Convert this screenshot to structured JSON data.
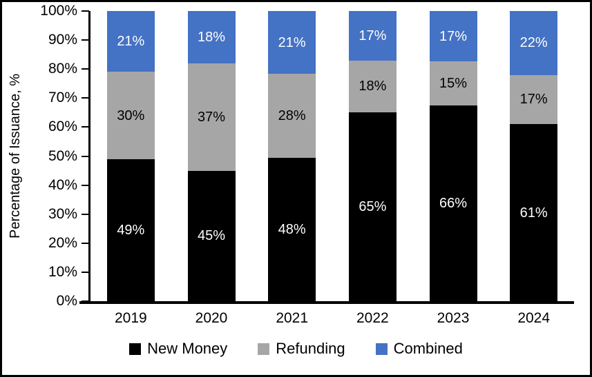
{
  "chart_data": {
    "type": "bar",
    "stacked": true,
    "title": "",
    "xlabel": "",
    "ylabel": "Percentage of Issuance, %",
    "ylim": [
      0,
      100
    ],
    "y_tick_step": 10,
    "y_ticks": [
      "0%",
      "10%",
      "20%",
      "30%",
      "40%",
      "50%",
      "60%",
      "70%",
      "80%",
      "90%",
      "100%"
    ],
    "grid": false,
    "legend_position": "bottom",
    "categories": [
      "2019",
      "2020",
      "2021",
      "2022",
      "2023",
      "2024"
    ],
    "series": [
      {
        "name": "New Money",
        "color": "#000000",
        "label_color": "#ffffff",
        "values": [
          49,
          45,
          48,
          65,
          66,
          61
        ],
        "labels": [
          "49%",
          "45%",
          "48%",
          "65%",
          "66%",
          "61%"
        ]
      },
      {
        "name": "Refunding",
        "color": "#A6A6A6",
        "label_color": "#000000",
        "values": [
          30,
          37,
          28,
          18,
          15,
          17
        ],
        "labels": [
          "30%",
          "37%",
          "28%",
          "18%",
          "15%",
          "17%"
        ]
      },
      {
        "name": "Combined",
        "color": "#4472C4",
        "label_color": "#ffffff",
        "values": [
          21,
          18,
          21,
          17,
          17,
          22
        ],
        "labels": [
          "21%",
          "18%",
          "21%",
          "17%",
          "17%",
          "22%"
        ]
      }
    ],
    "colors": {
      "axis": "#000000",
      "background": "#ffffff",
      "frame_border": "#000000"
    }
  }
}
